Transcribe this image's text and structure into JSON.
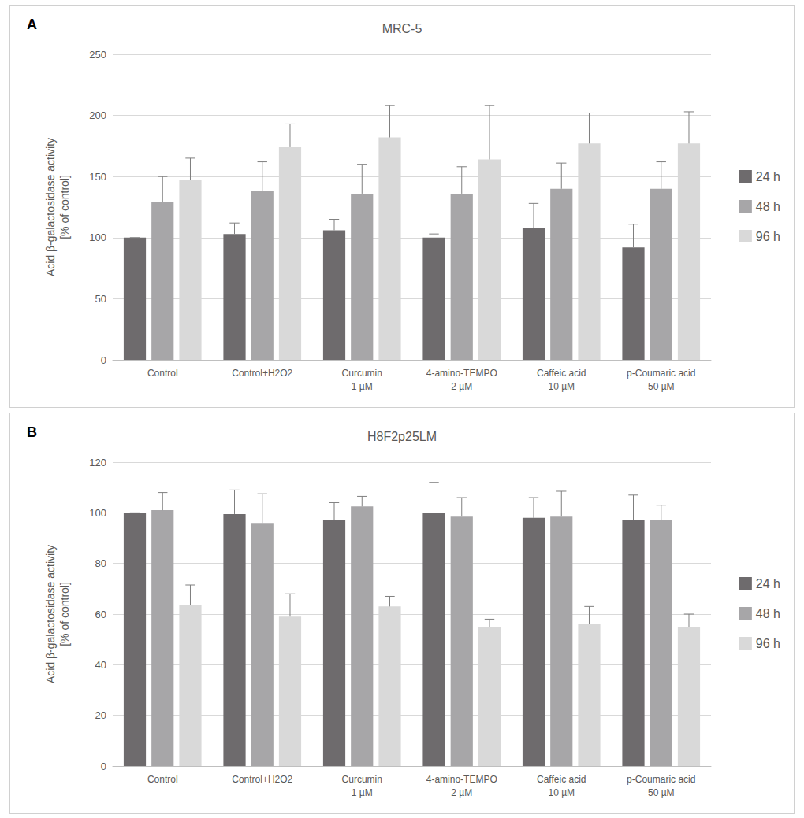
{
  "chart_data": [
    {
      "type": "bar",
      "annotations": [
        "A"
      ],
      "title": "MRC-5",
      "y_label": "Acid β-galactosidase activity\n[% of control]",
      "categories": [
        "Control",
        "Control+H2O2",
        "Curcumin\n1 µM",
        "4-amino-TEMPO\n2 µM",
        "Caffeic acid\n10 µM",
        "p-Coumaric acid\n50 µM"
      ],
      "series": [
        {
          "name": "24 h",
          "color": "#6e6b6d",
          "values": [
            100,
            103,
            106,
            100,
            108,
            92
          ],
          "errors": [
            0,
            9,
            9,
            3,
            20,
            19
          ]
        },
        {
          "name": "48 h",
          "color": "#a7a6a8",
          "values": [
            129,
            138,
            136,
            136,
            140,
            140
          ],
          "errors": [
            21,
            24,
            24,
            22,
            21,
            22
          ]
        },
        {
          "name": "96 h",
          "color": "#d9d9d9",
          "values": [
            147,
            174,
            182,
            164,
            177,
            177
          ],
          "errors": [
            18,
            19,
            26,
            44,
            25,
            26
          ]
        }
      ],
      "ylim": [
        0,
        250
      ],
      "yticks": [
        0,
        50,
        100,
        150,
        200,
        250
      ],
      "grid": true,
      "legend": "right"
    },
    {
      "type": "bar",
      "annotations": [
        "B"
      ],
      "title": "H8F2p25LM",
      "y_label": "Acid β-galactosidase activity\n[% of control]",
      "categories": [
        "Control",
        "Control+H2O2",
        "Curcumin\n1 µM",
        "4-amino-TEMPO\n2 µM",
        "Caffeic acid\n10 µM",
        "p-Coumaric acid\n50 µM"
      ],
      "series": [
        {
          "name": "24 h",
          "color": "#6e6b6d",
          "values": [
            100,
            99.5,
            97,
            100,
            98,
            97
          ],
          "errors": [
            0,
            9.5,
            7,
            12,
            8,
            10
          ]
        },
        {
          "name": "48 h",
          "color": "#a7a6a8",
          "values": [
            101,
            96,
            102.5,
            98.5,
            98.5,
            97
          ],
          "errors": [
            7,
            11.5,
            4,
            7.5,
            10,
            6
          ]
        },
        {
          "name": "96 h",
          "color": "#d9d9d9",
          "values": [
            63.5,
            59,
            63,
            55,
            56,
            55
          ],
          "errors": [
            8,
            9,
            4,
            3,
            7,
            5
          ]
        }
      ],
      "ylim": [
        0,
        120
      ],
      "yticks": [
        0,
        20,
        40,
        60,
        80,
        100,
        120
      ],
      "grid": true,
      "legend": "right"
    }
  ]
}
